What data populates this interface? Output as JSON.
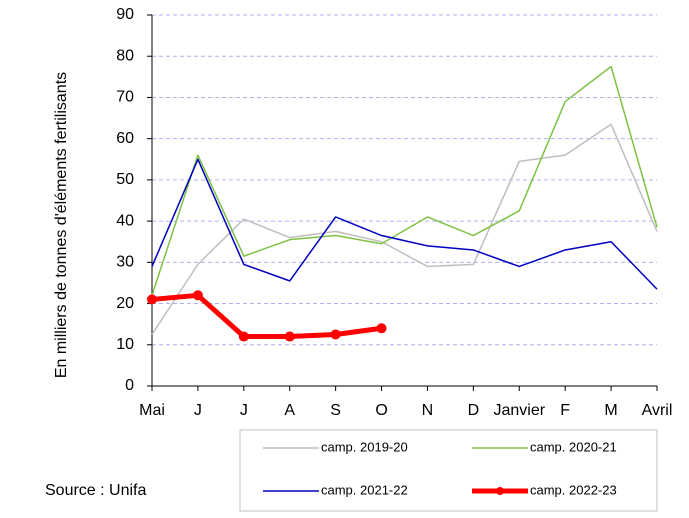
{
  "chart_data": {
    "type": "line",
    "y_label": "En milliers de tonnes d'éléments fertilisants",
    "source": "Source : Unifa",
    "categories": [
      "Mai",
      "J",
      "J",
      "A",
      "S",
      "O",
      "N",
      "D",
      "Janvier",
      "F",
      "M",
      "Avril"
    ],
    "series": [
      {
        "name": "camp. 2019-20",
        "color": "#bfbfbf",
        "values": [
          12.5,
          29.5,
          40.5,
          36,
          37.5,
          35,
          29,
          29.5,
          54.5,
          56,
          63.5,
          37.5
        ]
      },
      {
        "name": "camp. 2020-21",
        "color": "#7dc243",
        "values": [
          22,
          56,
          31.5,
          35.5,
          36.5,
          34.5,
          41,
          36.5,
          42.5,
          69,
          77.5,
          38.5
        ]
      },
      {
        "name": "camp. 2021-22",
        "color": "#0000c0",
        "values": [
          29,
          55,
          29.5,
          25.5,
          41,
          36.5,
          34,
          33,
          29,
          33,
          35,
          23.5
        ]
      },
      {
        "name": "camp. 2022-23",
        "color": "#ff0000",
        "values": [
          21,
          22,
          12,
          12,
          12.5,
          14,
          null,
          null,
          null,
          null,
          null,
          null
        ]
      }
    ],
    "ylim": [
      0,
      90
    ],
    "yticks": [
      0,
      10,
      20,
      30,
      40,
      50,
      60,
      70,
      80,
      90
    ],
    "grid": true
  }
}
